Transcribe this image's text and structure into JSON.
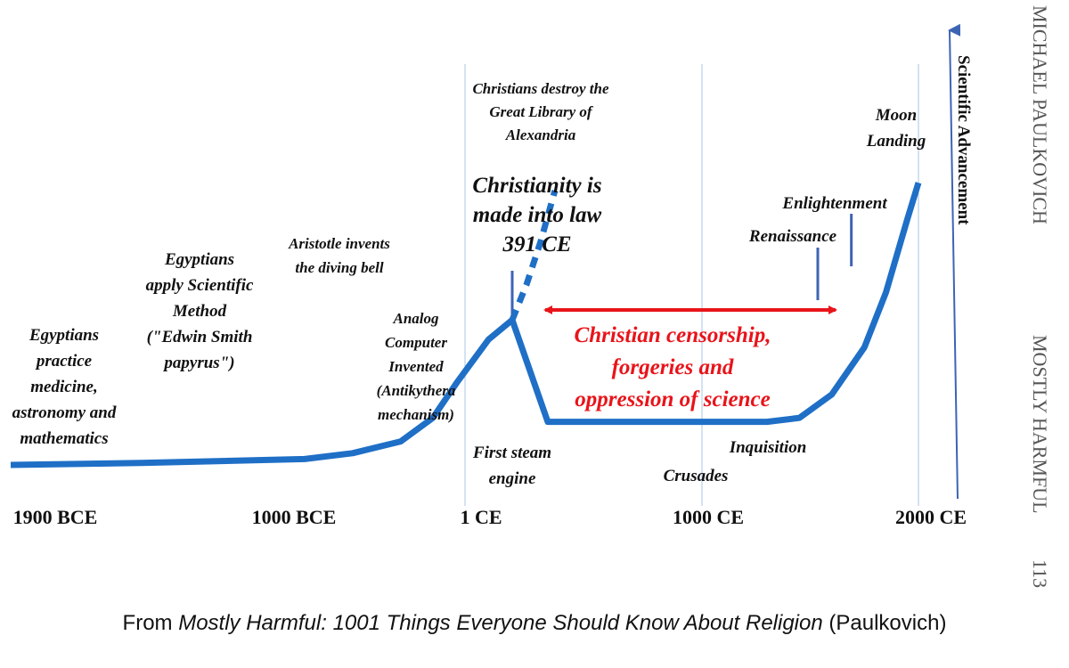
{
  "chart_data": {
    "type": "line",
    "title": "",
    "ylabel": "Scientific Advancement",
    "xlabel": "",
    "x_ticks": [
      "1900 BCE",
      "1000 BCE",
      "1 CE",
      "1000 CE",
      "2000 CE"
    ],
    "x_tick_values": [
      -1900,
      -1000,
      1,
      1000,
      2000
    ],
    "xlim": [
      -1900,
      2100
    ],
    "ylim": [
      0,
      100
    ],
    "grid": "vertical lines at 1 CE, 1000 CE, 2000 CE",
    "series": [
      {
        "style": "solid",
        "x": [
          -1900,
          -1500,
          -1000,
          -700,
          -400,
          -200,
          -50,
          100,
          200,
          350,
          500,
          700,
          1000,
          1300,
          1450,
          1600,
          1750,
          1850,
          1950,
          2000
        ],
        "y": [
          0,
          0.5,
          1.5,
          3,
          6,
          12,
          21,
          32,
          37,
          11,
          11,
          11,
          11,
          11,
          12,
          18,
          30,
          44,
          63,
          72
        ]
      },
      {
        "style": "dashed",
        "x": [
          200,
          260,
          320,
          380
        ],
        "y": [
          37,
          46,
          57,
          70
        ]
      }
    ],
    "annotations": [
      {
        "text": "Egyptians practice medicine, astronomy and mathematics",
        "lines": [
          "Egyptians",
          "practice",
          "medicine,",
          "astronomy and",
          "mathematics"
        ]
      },
      {
        "text": "Egyptians apply Scientific Method (\"Edwin Smith papyrus\")",
        "lines": [
          "Egyptians",
          "apply Scientific",
          "Method",
          "(\"Edwin Smith",
          "papyrus\")"
        ]
      },
      {
        "text": "Aristotle invents the diving bell",
        "lines": [
          "Aristotle invents",
          "the diving bell"
        ]
      },
      {
        "text": "Analog Computer Invented (Antikythera mechanism)",
        "lines": [
          "Analog",
          "Computer",
          "Invented",
          "(Antikythera",
          "mechanism)"
        ]
      },
      {
        "text": "Christians destroy the Great Library of Alexandria",
        "lines": [
          "Christians destroy the",
          "Great Library of",
          "Alexandria"
        ]
      },
      {
        "text": "Christianity is made into law 391 CE",
        "lines": [
          "Christianity is",
          "made into law",
          "391 CE"
        ]
      },
      {
        "text": "First steam engine",
        "lines": [
          "First steam",
          "engine"
        ]
      },
      {
        "text": "Crusades",
        "lines": [
          "Crusades"
        ]
      },
      {
        "text": "Inquisition",
        "lines": [
          "Inquisition"
        ]
      },
      {
        "text": "Renaissance",
        "lines": [
          "Renaissance"
        ]
      },
      {
        "text": "Enlightenment",
        "lines": [
          "Enlightenment"
        ]
      },
      {
        "text": "Moon Landing",
        "lines": [
          "Moon",
          "Landing"
        ]
      }
    ],
    "red_label": {
      "text": "Christian censorship, forgeries and oppression of science",
      "lines": [
        "Christian censorship,",
        "forgeries and",
        "oppression of science"
      ]
    },
    "colors": {
      "line": "#1f6fc6",
      "red": "#e8141a",
      "grid": "#a9c4e6",
      "marker": "#3d64b4"
    }
  },
  "side_text": {
    "author": "MICHAEL PAULKOVICH",
    "book": "MOSTLY HARMFUL",
    "page": "113"
  },
  "caption": {
    "prefix": "From ",
    "title": "Mostly Harmful: 1001 Things Everyone Should Know About Religion",
    "suffix": " (Paulkovich)"
  }
}
